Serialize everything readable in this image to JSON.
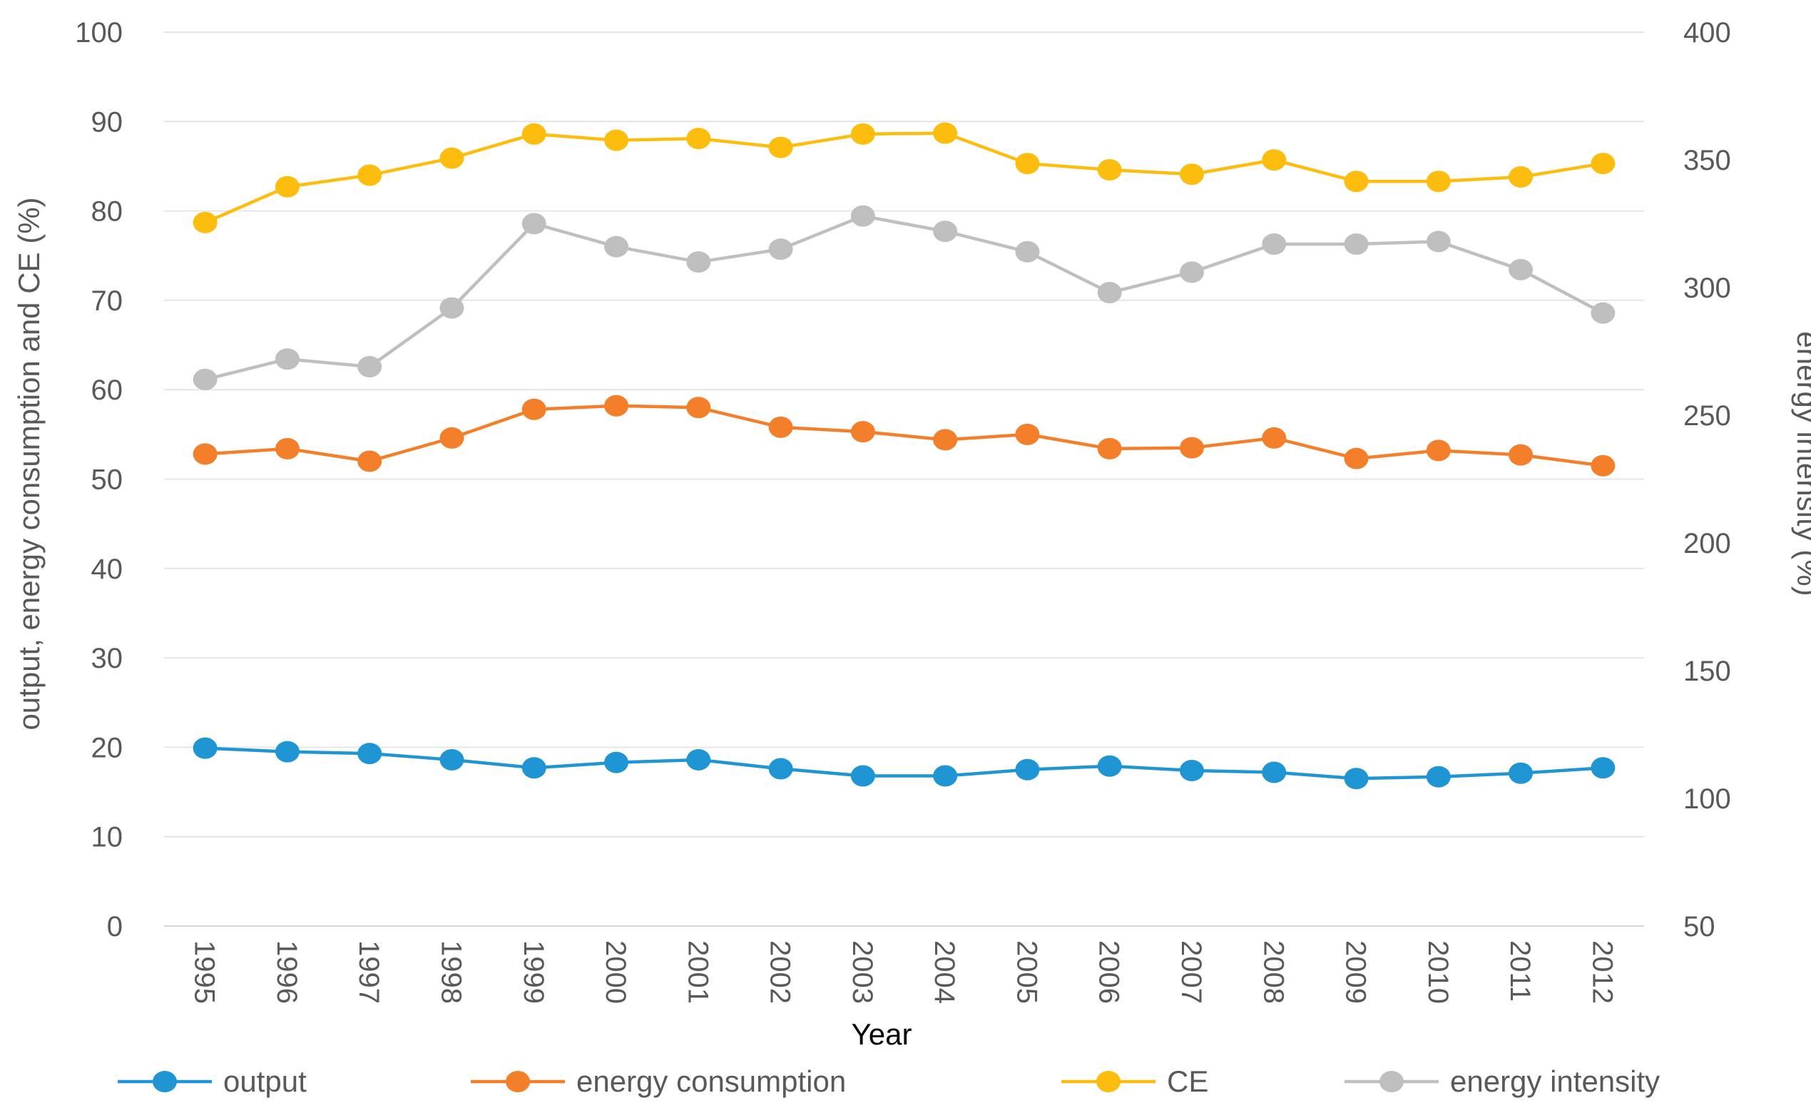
{
  "chart_data": {
    "type": "line",
    "categories": [
      "1995",
      "1996",
      "1997",
      "1998",
      "1999",
      "2000",
      "2001",
      "2002",
      "2003",
      "2004",
      "2005",
      "2006",
      "2007",
      "2008",
      "2009",
      "2010",
      "2011",
      "2012"
    ],
    "xlabel": "Year",
    "ylabel": "output, energy consumption and CE (%)",
    "y2label": "energy intensity (%)",
    "ylim": [
      0,
      100
    ],
    "y2lim": [
      50,
      400
    ],
    "yticks": [
      0,
      10,
      20,
      30,
      40,
      50,
      60,
      70,
      80,
      90,
      100
    ],
    "y2ticks": [
      50,
      100,
      150,
      200,
      250,
      300,
      350,
      400
    ],
    "grid": true,
    "legend_position": "bottom",
    "series": [
      {
        "name": "output",
        "axis": "left",
        "color": "#1f96d3",
        "values": [
          19.9,
          19.5,
          19.3,
          18.6,
          17.7,
          18.3,
          18.6,
          17.6,
          16.8,
          16.8,
          17.5,
          17.9,
          17.4,
          17.2,
          16.5,
          16.7,
          17.1,
          17.7
        ]
      },
      {
        "name": "energy consumption",
        "axis": "left",
        "color": "#f47f2b",
        "values": [
          52.8,
          53.4,
          52.0,
          54.6,
          57.8,
          58.2,
          58.0,
          55.8,
          55.3,
          54.4,
          55.0,
          53.4,
          53.5,
          54.6,
          52.3,
          53.2,
          52.7,
          51.5
        ]
      },
      {
        "name": "CE",
        "axis": "left",
        "color": "#fdbd0f",
        "values": [
          78.7,
          82.7,
          84.0,
          85.9,
          88.6,
          87.9,
          88.1,
          87.1,
          88.6,
          88.7,
          85.3,
          84.6,
          84.1,
          85.7,
          83.3,
          83.3,
          83.8,
          85.3
        ]
      },
      {
        "name": "energy intensity",
        "axis": "right",
        "color": "#bfbfbf",
        "values": [
          264,
          272,
          269,
          292,
          325,
          316,
          310,
          315,
          328,
          322,
          314,
          298,
          306,
          317,
          317,
          318,
          307,
          290
        ]
      }
    ]
  }
}
